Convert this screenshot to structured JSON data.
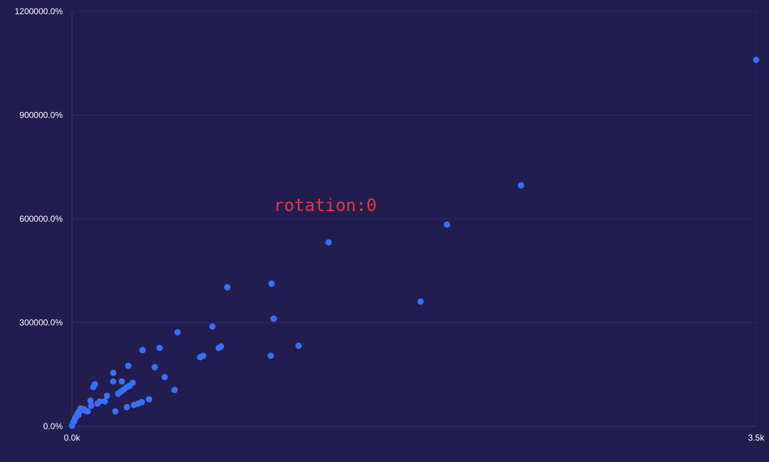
{
  "chart_data": {
    "type": "scatter",
    "title": "",
    "xlabel": "",
    "ylabel": "",
    "xlim": [
      0,
      3500
    ],
    "ylim": [
      0,
      1200000
    ],
    "x_ticks": [
      {
        "value": 0,
        "label": "0.0k"
      },
      {
        "value": 3500,
        "label": "3.5k"
      }
    ],
    "y_ticks": [
      {
        "value": 0,
        "label": "0.0%"
      },
      {
        "value": 300000,
        "label": "300000.0%"
      },
      {
        "value": 600000,
        "label": "600000.0%"
      },
      {
        "value": 900000,
        "label": "900000.0%"
      },
      {
        "value": 1200000,
        "label": "1200000.0%"
      }
    ],
    "grid": true,
    "annotation": "rotation:0",
    "colors": {
      "background": "#221c4f",
      "point": "#3a6ff5",
      "grid": "#2f2a5e",
      "annotation": "#e8353a"
    },
    "points": [
      [
        3500,
        1059800
      ],
      [
        2297,
        696900
      ],
      [
        1918,
        583500
      ],
      [
        1313,
        532000
      ],
      [
        1783,
        360800
      ],
      [
        1021,
        412400
      ],
      [
        795,
        402100
      ],
      [
        1032,
        311300
      ],
      [
        718,
        288700
      ],
      [
        1159,
        233000
      ],
      [
        1017,
        204100
      ],
      [
        540,
        272200
      ],
      [
        762,
        230900
      ],
      [
        751,
        226800
      ],
      [
        671,
        204100
      ],
      [
        656,
        200000
      ],
      [
        448,
        226800
      ],
      [
        361,
        220600
      ],
      [
        423,
        171100
      ],
      [
        474,
        142300
      ],
      [
        525,
        105200
      ],
      [
        288,
        175300
      ],
      [
        211,
        154600
      ],
      [
        211,
        129900
      ],
      [
        255,
        129900
      ],
      [
        117,
        121700
      ],
      [
        109,
        113400
      ],
      [
        310,
        125800
      ],
      [
        295,
        117500
      ],
      [
        281,
        113400
      ],
      [
        266,
        107200
      ],
      [
        252,
        101000
      ],
      [
        237,
        94800
      ],
      [
        394,
        78400
      ],
      [
        357,
        70100
      ],
      [
        339,
        66000
      ],
      [
        317,
        61900
      ],
      [
        281,
        55700
      ],
      [
        222,
        43300
      ],
      [
        179,
        88700
      ],
      [
        168,
        72200
      ],
      [
        142,
        72200
      ],
      [
        131,
        66000
      ],
      [
        95,
        74200
      ],
      [
        98,
        59800
      ],
      [
        80,
        43300
      ],
      [
        62,
        49500
      ],
      [
        51,
        47400
      ],
      [
        36,
        43300
      ],
      [
        29,
        37100
      ],
      [
        22,
        28900
      ],
      [
        15,
        20600
      ],
      [
        7,
        12400
      ],
      [
        0,
        2100
      ],
      [
        11,
        14400
      ],
      [
        44,
        51500
      ],
      [
        69,
        45400
      ],
      [
        33,
        33000
      ],
      [
        18,
        24700
      ]
    ]
  }
}
